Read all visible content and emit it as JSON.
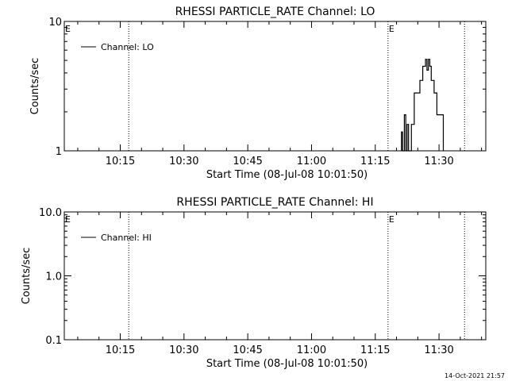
{
  "timestamp": "14-Oct-2021 21:57",
  "chart_data": [
    {
      "type": "line",
      "title": "RHESSI PARTICLE_RATE Channel: LO",
      "xlabel": "Start Time (08-Jul-08 10:01:50)",
      "ylabel": "Counts/sec",
      "yscale": "log",
      "xlim": [
        "10:01:50",
        "11:41:00"
      ],
      "ylim": [
        1,
        10
      ],
      "xticks": [
        "10:15",
        "10:30",
        "10:45",
        "11:00",
        "11:15",
        "11:30"
      ],
      "yticks": [
        "1",
        "10"
      ],
      "legend": {
        "label": "Channel: LO",
        "placement": "top-left"
      },
      "event_markers": [
        {
          "time": "10:01:50",
          "label": "E",
          "dotted": false
        },
        {
          "time": "10:17:00",
          "label": "",
          "dotted": true
        },
        {
          "time": "11:18:00",
          "label": "E",
          "dotted": true
        },
        {
          "time": "11:36:00",
          "label": "",
          "dotted": true
        }
      ],
      "series": [
        {
          "points": [
            [
              "11:21:10",
              1.0
            ],
            [
              "11:21:10",
              1.4
            ],
            [
              "11:21:25",
              1.4
            ],
            [
              "11:21:25",
              1.0
            ],
            [
              "11:21:50",
              1.0
            ],
            [
              "11:21:50",
              1.9
            ],
            [
              "11:22:10",
              1.9
            ],
            [
              "11:22:10",
              1.0
            ],
            [
              "11:22:30",
              1.0
            ],
            [
              "11:22:30",
              1.6
            ],
            [
              "11:22:50",
              1.6
            ],
            [
              "11:22:50",
              1.0
            ],
            [
              "11:23:30",
              1.0
            ],
            [
              "11:23:30",
              1.6
            ],
            [
              "11:24:10",
              1.6
            ],
            [
              "11:24:10",
              2.8
            ],
            [
              "11:25:30",
              2.8
            ],
            [
              "11:25:30",
              3.5
            ],
            [
              "11:26:10",
              3.5
            ],
            [
              "11:26:10",
              4.5
            ],
            [
              "11:26:50",
              4.5
            ],
            [
              "11:26:50",
              5.1
            ],
            [
              "11:27:10",
              5.1
            ],
            [
              "11:27:10",
              4.2
            ],
            [
              "11:27:30",
              4.2
            ],
            [
              "11:27:30",
              5.1
            ],
            [
              "11:27:50",
              5.1
            ],
            [
              "11:27:50",
              4.5
            ],
            [
              "11:28:10",
              4.5
            ],
            [
              "11:28:10",
              3.5
            ],
            [
              "11:28:50",
              3.5
            ],
            [
              "11:28:50",
              2.8
            ],
            [
              "11:29:30",
              2.8
            ],
            [
              "11:29:30",
              1.9
            ],
            [
              "11:31:00",
              1.9
            ],
            [
              "11:31:00",
              1.0
            ]
          ]
        }
      ]
    },
    {
      "type": "line",
      "title": "RHESSI PARTICLE_RATE Channel: HI",
      "xlabel": "Start Time (08-Jul-08 10:01:50)",
      "ylabel": "Counts/sec",
      "yscale": "log",
      "xlim": [
        "10:01:50",
        "11:41:00"
      ],
      "ylim": [
        0.1,
        10
      ],
      "xticks": [
        "10:15",
        "10:30",
        "10:45",
        "11:00",
        "11:15",
        "11:30"
      ],
      "yticks": [
        "0.1",
        "1.0",
        "10.0"
      ],
      "legend": {
        "label": "Channel: HI",
        "placement": "top-left"
      },
      "event_markers": [
        {
          "time": "10:01:50",
          "label": "E",
          "dotted": false
        },
        {
          "time": "10:17:00",
          "label": "",
          "dotted": true
        },
        {
          "time": "11:18:00",
          "label": "E",
          "dotted": true
        },
        {
          "time": "11:36:00",
          "label": "",
          "dotted": true
        }
      ],
      "series": [
        {
          "points": []
        }
      ]
    }
  ]
}
